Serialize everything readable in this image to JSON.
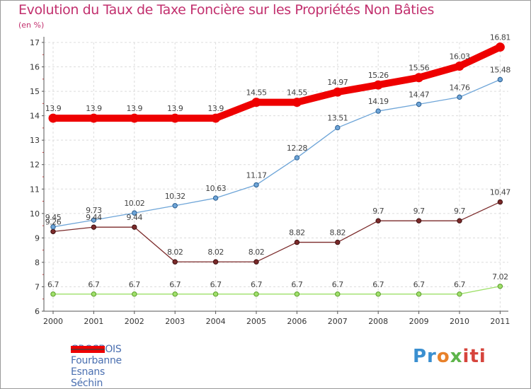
{
  "header": {
    "title": "Evolution du Taux de Taxe Foncière sur les Propriétés Non Bâties",
    "subtitle": "(en %)"
  },
  "logo": {
    "text": "Proxiti",
    "colors": [
      "#3a8fd0",
      "#e8812a",
      "#5db44a",
      "#d6443c"
    ]
  },
  "chart_data": {
    "type": "line",
    "title": "Evolution du Taux de Taxe Foncière sur les Propriétés Non Bâties",
    "ylabel": "(en %)",
    "xlabel": "",
    "ylim": [
      6,
      17
    ],
    "yticks": [
      6,
      7,
      8,
      9,
      10,
      11,
      12,
      13,
      14,
      15,
      16,
      17
    ],
    "categories": [
      "2000",
      "2001",
      "2002",
      "2003",
      "2004",
      "2005",
      "2006",
      "2007",
      "2008",
      "2009",
      "2010",
      "2011"
    ],
    "grid": true,
    "legend": "bottom-left",
    "series": [
      {
        "name": "GROSBOIS",
        "color": "#ee0000",
        "values": [
          13.9,
          13.9,
          13.9,
          13.9,
          13.9,
          14.55,
          14.55,
          14.97,
          15.26,
          15.56,
          16.03,
          16.81
        ],
        "labels": [
          "13.9",
          "13.9",
          "13.9",
          "13.9",
          "13.9",
          "14.55",
          "14.55",
          "14.97",
          "15.26",
          "15.56",
          "16.03",
          "16.81"
        ]
      },
      {
        "name": "Fourbanne",
        "color": "#6ea5d8",
        "values": [
          9.45,
          9.73,
          10.02,
          10.32,
          10.63,
          11.17,
          12.28,
          13.51,
          14.19,
          14.47,
          14.76,
          15.48
        ],
        "labels": [
          "9.45",
          "9.73",
          "10.02",
          "10.32",
          "10.63",
          "11.17",
          "12.28",
          "13.51",
          "14.19",
          "14.47",
          "14.76",
          "15.48"
        ]
      },
      {
        "name": "Esnans",
        "color": "#9fe06a",
        "values": [
          6.7,
          6.7,
          6.7,
          6.7,
          6.7,
          6.7,
          6.7,
          6.7,
          6.7,
          6.7,
          6.7,
          7.02
        ],
        "labels": [
          "6.7",
          "6.7",
          "6.7",
          "6.7",
          "6.7",
          "6.7",
          "6.7",
          "6.7",
          "6.7",
          "6.7",
          "6.7",
          "7.02"
        ]
      },
      {
        "name": "Séchin",
        "color": "#7b2a2a",
        "values": [
          9.26,
          9.44,
          9.44,
          8.02,
          8.02,
          8.02,
          8.82,
          8.82,
          9.7,
          9.7,
          9.7,
          10.47
        ],
        "labels": [
          "9.26",
          "9.44",
          "9.44",
          "8.02",
          "8.02",
          "8.02",
          "8.82",
          "8.82",
          "9.7",
          "9.7",
          "9.7",
          "10.47"
        ]
      }
    ]
  }
}
